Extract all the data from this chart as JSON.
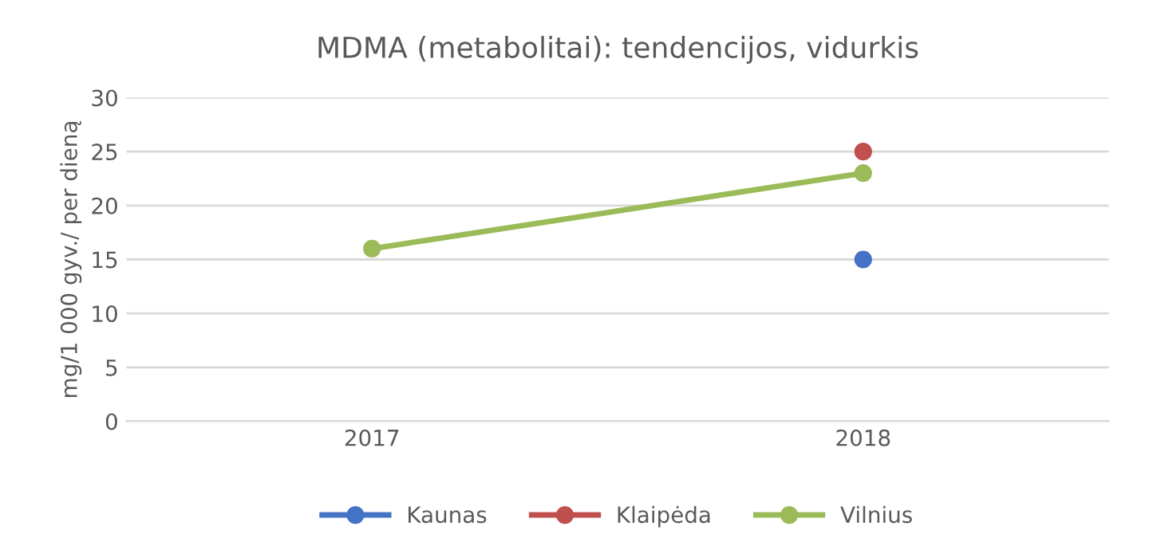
{
  "chart_data": {
    "type": "line",
    "title": "MDMA (metabolitai): tendencijos, vidurkis",
    "ylabel": "mg/1 000 gyv./ per dieną",
    "categories": [
      "2017",
      "2018"
    ],
    "series": [
      {
        "name": "Kaunas",
        "color": "#4472c4",
        "values": [
          null,
          15
        ]
      },
      {
        "name": "Klaipėda",
        "color": "#c0504d",
        "values": [
          null,
          25
        ]
      },
      {
        "name": "Vilnius",
        "color": "#9bbb59",
        "values": [
          16,
          23
        ]
      }
    ],
    "ylim": [
      0,
      30
    ],
    "yticks": [
      0,
      5,
      10,
      15,
      20,
      25,
      30
    ],
    "grid": "y",
    "legend": "bottom",
    "marker": "circle",
    "line_style": "solid"
  }
}
